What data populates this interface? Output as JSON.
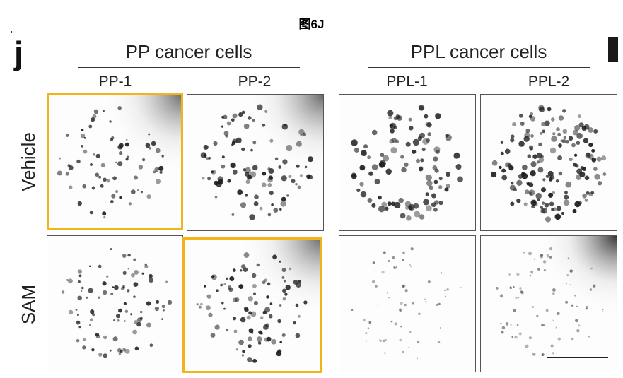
{
  "figure": {
    "title": "图6J",
    "panel_letter": "j",
    "groups": [
      {
        "label": "PP cancer cells"
      },
      {
        "label": "PPL cancer cells"
      }
    ],
    "columns": [
      "PP-1",
      "PP-2",
      "PPL-1",
      "PPL-2"
    ],
    "rows": [
      "Vehicle",
      "SAM"
    ],
    "highlight_color": "#f2b418",
    "colony_color": "#1e1e1e"
  }
}
